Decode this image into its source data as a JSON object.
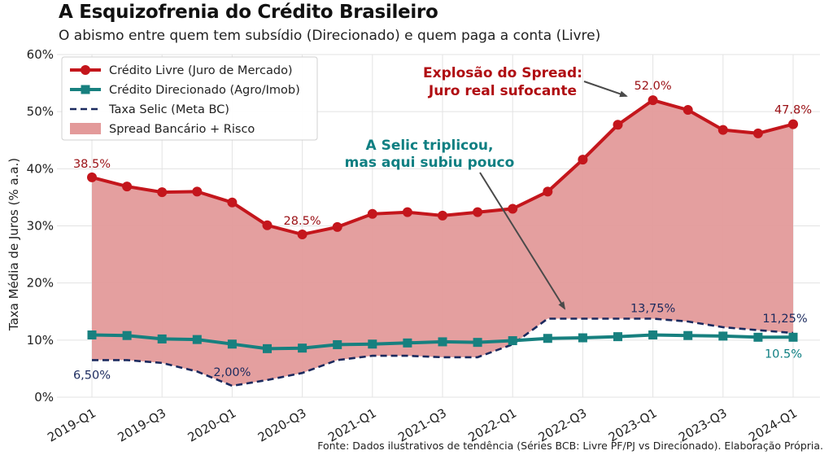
{
  "title": "A Esquizofrenia do Crédito Brasileiro",
  "subtitle": "O abismo entre quem tem subsídio (Direcionado) e quem paga a conta (Livre)",
  "source": "Fonte: Dados ilustrativos de tendência (Séries BCB: Livre PF/PJ vs Direcionado). Elaboração Própria.",
  "colors": {
    "livre": "#c4161c",
    "direcionado": "#17807f",
    "selic": "#1b2a5e",
    "spread": "#e39a9a",
    "livre_label": "#9a1015",
    "teal_label": "#0f7f82",
    "selic_label": "#1b2a5e"
  },
  "chart_data": {
    "type": "line",
    "title": "A Esquizofrenia do Crédito Brasileiro",
    "xlabel": "",
    "ylabel": "Taxa Média de Juros (% a.a.)",
    "ylim": [
      0,
      60
    ],
    "yticks": [
      "0%",
      "10%",
      "20%",
      "30%",
      "40%",
      "50%",
      "60%"
    ],
    "x": [
      "2019-Q1",
      "2019-Q2",
      "2019-Q3",
      "2019-Q4",
      "2020-Q1",
      "2020-Q2",
      "2020-Q3",
      "2020-Q4",
      "2021-Q1",
      "2021-Q2",
      "2021-Q3",
      "2021-Q4",
      "2022-Q1",
      "2022-Q2",
      "2022-Q3",
      "2022-Q4",
      "2023-Q1",
      "2023-Q2",
      "2023-Q3",
      "2023-Q4",
      "2024-Q1"
    ],
    "xtick_labels": [
      "2019-Q1",
      "2019-Q3",
      "2020-Q1",
      "2020-Q3",
      "2021-Q1",
      "2021-Q3",
      "2022-Q1",
      "2022-Q3",
      "2023-Q1",
      "2023-Q3",
      "2024-Q1"
    ],
    "series": [
      {
        "name": "Crédito Livre (Juro de Mercado)",
        "style": "line-circle",
        "values": [
          38.5,
          36.9,
          35.9,
          36.0,
          34.1,
          30.1,
          28.5,
          29.8,
          32.1,
          32.4,
          31.8,
          32.4,
          33.0,
          36.0,
          41.6,
          47.7,
          52.0,
          50.3,
          46.8,
          46.2,
          47.8
        ]
      },
      {
        "name": "Crédito Direcionado (Agro/Imob)",
        "style": "line-square",
        "values": [
          10.9,
          10.8,
          10.2,
          10.1,
          9.3,
          8.5,
          8.6,
          9.2,
          9.3,
          9.5,
          9.7,
          9.6,
          9.9,
          10.3,
          10.4,
          10.6,
          10.9,
          10.8,
          10.7,
          10.5,
          10.5
        ]
      },
      {
        "name": "Taxa Selic (Meta BC)",
        "style": "dashed",
        "values": [
          6.5,
          6.5,
          6.0,
          4.5,
          2.0,
          3.0,
          4.25,
          6.5,
          7.25,
          7.25,
          7.0,
          7.0,
          9.25,
          13.75,
          13.75,
          13.75,
          13.75,
          13.25,
          12.25,
          11.75,
          11.25
        ]
      }
    ],
    "area": {
      "name": "Spread Bancário + Risco",
      "between": [
        "Taxa Selic (Meta BC)",
        "Crédito Livre (Juro de Mercado)"
      ]
    },
    "legend": "top-left",
    "data_labels": {
      "livre_first": "38.5%",
      "livre_min": "28.5%",
      "livre_peak": "52.0%",
      "livre_last": "47.8%",
      "selic_first": "6,50%",
      "selic_min": "2,00%",
      "selic_peak": "13,75%",
      "selic_last": "11,25%",
      "direcionado_last": "10.5%"
    },
    "annotations": {
      "spread_line1": "Explosão do Spread:",
      "spread_line2": "Juro real sufocante",
      "selic_line1": "A Selic triplicou,",
      "selic_line2": "mas aqui subiu pouco"
    }
  }
}
